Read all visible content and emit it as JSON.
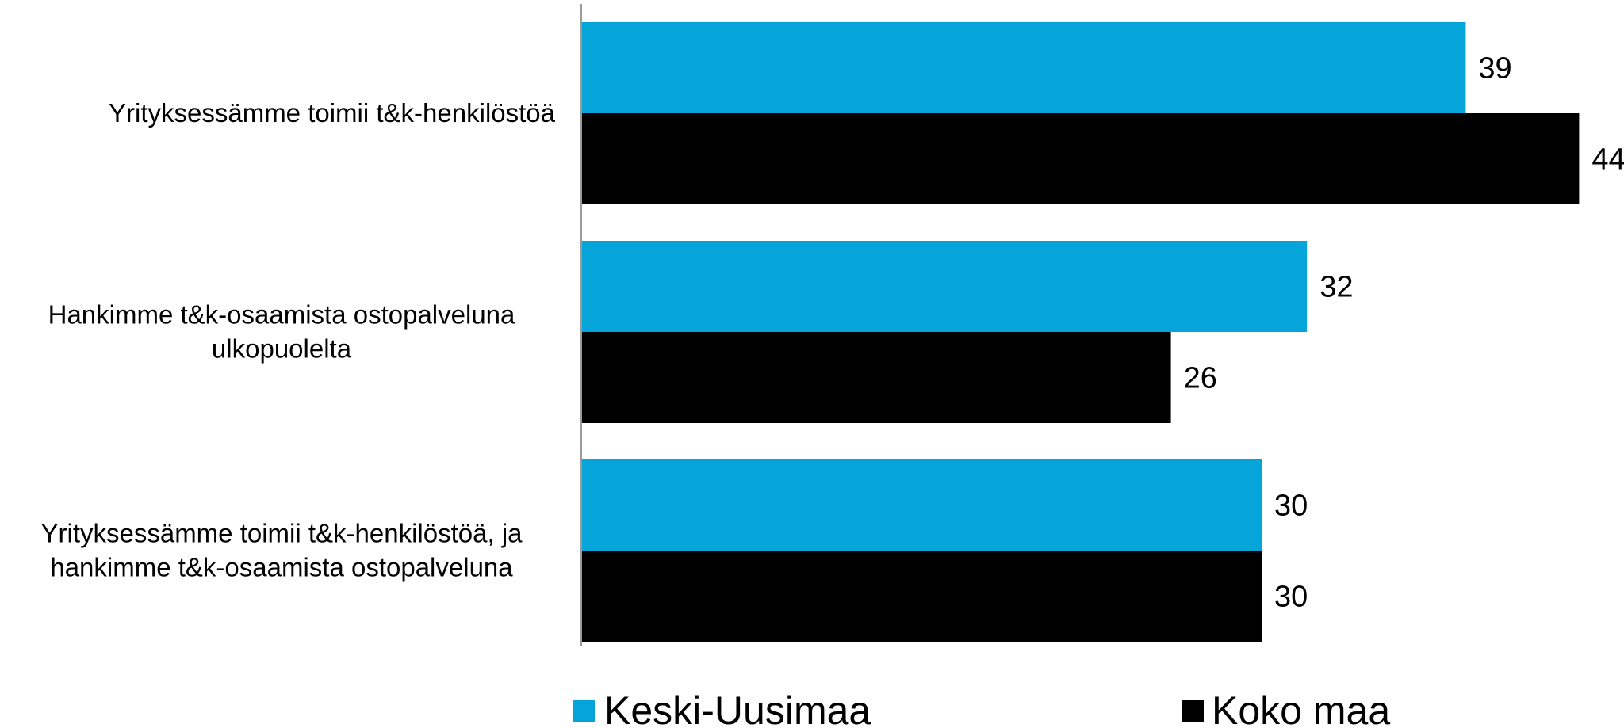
{
  "chart_data": {
    "type": "bar",
    "orientation": "horizontal",
    "categories": [
      [
        "Yrityksessämme toimii t&k-henkilöstöä"
      ],
      [
        "Hankimme t&k-osaamista ostopalveluna",
        "ulkopuolelta"
      ],
      [
        "Yrityksessämme toimii t&k-henkilöstöä, ja",
        "hankimme t&k-osaamista ostopalveluna"
      ]
    ],
    "series": [
      {
        "name": "Keski-Uusimaa",
        "color": "#05A5DA",
        "values": [
          39,
          32,
          30
        ]
      },
      {
        "name": "Koko maa",
        "color": "#000000",
        "values": [
          44,
          26,
          30
        ]
      }
    ],
    "data_labels": true,
    "xlim": [
      0,
      45
    ],
    "grid": false,
    "legend_position": "bottom"
  }
}
